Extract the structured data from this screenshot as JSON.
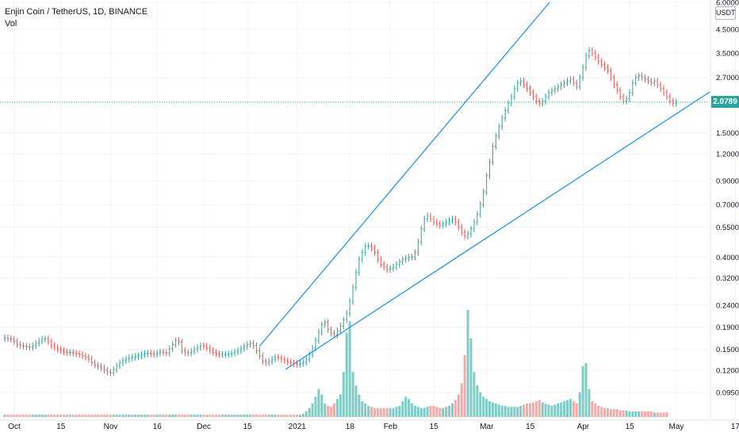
{
  "header": {
    "title": "Enjin Coin / TetherUS, 1D, BINANCE",
    "volume_label": "Vol",
    "unit": "USDT"
  },
  "colors": {
    "up": "#26a69a",
    "down": "#ef5350",
    "vol_up": "#80cbc4",
    "vol_down": "#f7a9a7",
    "trendline": "#2196f3",
    "last_price_line": "#26a69a",
    "grid": "#f0f3fa",
    "axis_text": "#131722"
  },
  "chart_data": {
    "type": "candlestick",
    "symbol": "Enjin Coin / TetherUS",
    "interval": "1D",
    "exchange": "BINANCE",
    "y_scale": "log",
    "ylim": [
      0.085,
      6.0
    ],
    "y_ticks": [
      "6.0000",
      "4.5000",
      "3.5000",
      "2.7000",
      "2.0789",
      "1.5000",
      "1.2000",
      "0.9000",
      "0.7000",
      "0.5500",
      "0.4000",
      "0.3200",
      "0.2400",
      "0.1900",
      "0.1500",
      "0.1200",
      "0.0950"
    ],
    "x_ticks": [
      "Oct",
      "15",
      "Nov",
      "16",
      "Dec",
      "15",
      "2021",
      "18",
      "Feb",
      "15",
      "Mar",
      "15",
      "Apr",
      "15",
      "May",
      "17"
    ],
    "last_price": 2.0789,
    "grid": true,
    "close_series": [
      0.17,
      0.168,
      0.167,
      0.163,
      0.158,
      0.156,
      0.155,
      0.154,
      0.153,
      0.156,
      0.16,
      0.164,
      0.167,
      0.168,
      0.163,
      0.156,
      0.153,
      0.15,
      0.148,
      0.146,
      0.145,
      0.145,
      0.144,
      0.143,
      0.142,
      0.14,
      0.138,
      0.135,
      0.13,
      0.127,
      0.125,
      0.123,
      0.12,
      0.118,
      0.117,
      0.121,
      0.126,
      0.13,
      0.133,
      0.135,
      0.137,
      0.138,
      0.139,
      0.14,
      0.142,
      0.143,
      0.144,
      0.143,
      0.142,
      0.144,
      0.146,
      0.145,
      0.144,
      0.151,
      0.158,
      0.165,
      0.162,
      0.148,
      0.145,
      0.144,
      0.147,
      0.15,
      0.153,
      0.156,
      0.155,
      0.152,
      0.148,
      0.145,
      0.143,
      0.142,
      0.142,
      0.142,
      0.143,
      0.144,
      0.146,
      0.148,
      0.151,
      0.155,
      0.158,
      0.16,
      0.156,
      0.148,
      0.14,
      0.132,
      0.13,
      0.132,
      0.135,
      0.138,
      0.137,
      0.135,
      0.133,
      0.131,
      0.13,
      0.129,
      0.128,
      0.129,
      0.131,
      0.135,
      0.142,
      0.152,
      0.165,
      0.18,
      0.195,
      0.2,
      0.185,
      0.178,
      0.175,
      0.183,
      0.192,
      0.205,
      0.22,
      0.25,
      0.29,
      0.34,
      0.39,
      0.42,
      0.45,
      0.45,
      0.44,
      0.42,
      0.39,
      0.37,
      0.36,
      0.35,
      0.355,
      0.36,
      0.37,
      0.38,
      0.39,
      0.395,
      0.4,
      0.4,
      0.42,
      0.47,
      0.54,
      0.6,
      0.62,
      0.6,
      0.58,
      0.57,
      0.56,
      0.57,
      0.58,
      0.59,
      0.6,
      0.58,
      0.55,
      0.52,
      0.5,
      0.51,
      0.54,
      0.58,
      0.63,
      0.7,
      0.8,
      0.95,
      1.1,
      1.3,
      1.45,
      1.6,
      1.75,
      1.9,
      2.05,
      2.2,
      2.4,
      2.55,
      2.6,
      2.5,
      2.4,
      2.3,
      2.2,
      2.1,
      2.05,
      2.1,
      2.2,
      2.3,
      2.35,
      2.4,
      2.45,
      2.5,
      2.55,
      2.6,
      2.65,
      2.55,
      2.45,
      2.7,
      3.0,
      3.4,
      3.6,
      3.5,
      3.35,
      3.2,
      3.1,
      3.0,
      2.9,
      2.7,
      2.5,
      2.35,
      2.2,
      2.1,
      2.15,
      2.3,
      2.55,
      2.7,
      2.75,
      2.7,
      2.65,
      2.6,
      2.55,
      2.6,
      2.5,
      2.4,
      2.3,
      2.2,
      2.1,
      2.05,
      2.0789
    ],
    "volume_series": [
      2,
      2,
      2,
      2,
      2,
      2,
      2,
      2,
      2,
      2,
      2,
      2,
      2,
      2,
      2,
      2,
      2,
      2,
      2,
      2,
      2,
      2,
      2,
      2,
      2,
      2,
      2,
      2,
      2,
      2,
      2,
      2,
      2,
      2,
      2,
      2,
      2,
      2,
      2,
      2,
      2,
      2,
      2,
      2,
      2,
      2,
      2,
      2,
      2,
      2,
      2,
      2,
      2,
      2,
      2,
      2,
      2,
      2,
      2,
      2,
      2,
      2,
      2,
      2,
      2,
      2,
      2,
      2,
      2,
      2,
      2,
      2,
      2,
      2,
      2,
      2,
      2,
      2,
      2,
      2,
      2,
      2,
      2,
      2,
      2,
      2,
      2,
      2,
      2,
      2,
      2,
      2,
      2,
      2,
      2,
      2,
      3,
      5,
      8,
      12,
      18,
      25,
      20,
      12,
      10,
      9,
      12,
      16,
      20,
      40,
      75,
      85,
      40,
      28,
      20,
      14,
      12,
      10,
      9,
      8,
      8,
      8,
      8,
      8,
      8,
      8,
      9,
      10,
      14,
      18,
      16,
      12,
      10,
      9,
      8,
      8,
      9,
      10,
      10,
      9,
      8,
      8,
      9,
      10,
      12,
      15,
      20,
      30,
      55,
      95,
      70,
      40,
      28,
      22,
      18,
      16,
      14,
      13,
      12,
      11,
      10,
      10,
      9,
      9,
      9,
      9,
      10,
      11,
      12,
      12,
      13,
      14,
      15,
      13,
      12,
      11,
      10,
      11,
      12,
      13,
      14,
      15,
      16,
      14,
      12,
      22,
      45,
      48,
      25,
      14,
      12,
      10,
      9,
      8,
      8,
      7,
      7,
      7,
      6,
      6,
      6,
      5,
      5,
      5,
      5,
      5,
      5,
      5,
      5,
      4,
      4,
      4,
      4,
      4
    ]
  }
}
